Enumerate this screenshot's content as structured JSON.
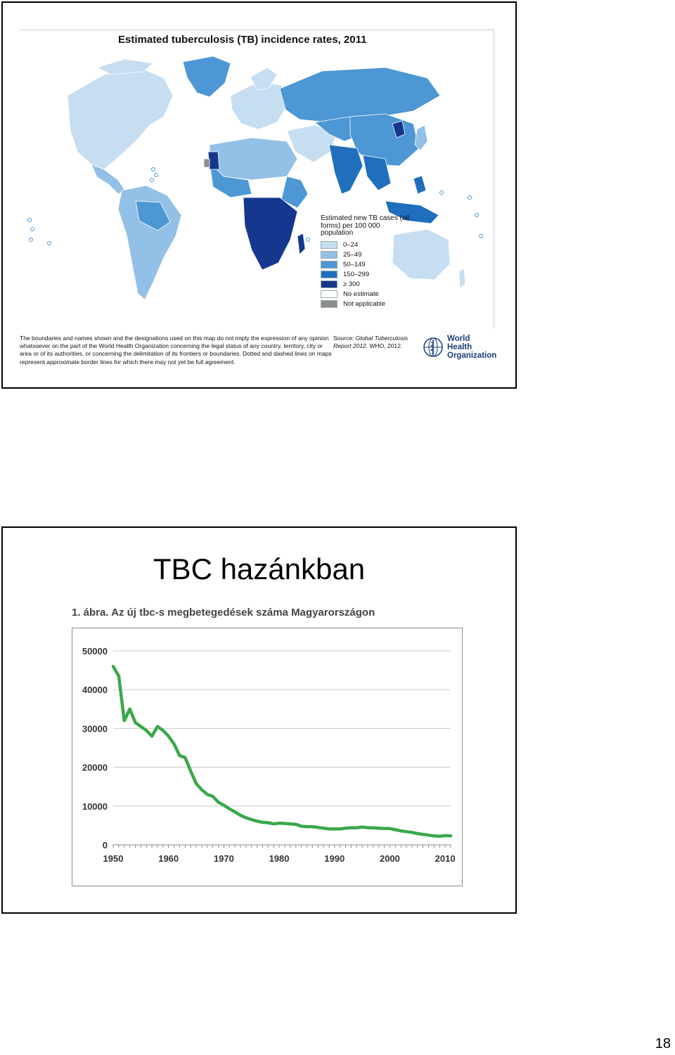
{
  "slide1": {
    "map": {
      "title": "Estimated tuberculosis (TB) incidence rates, 2011",
      "legend": {
        "title": "Estimated new TB cases (all forms) per 100 000 population",
        "items": [
          {
            "label": "0–24",
            "color": "#c6def2"
          },
          {
            "label": "25–49",
            "color": "#93c0e6"
          },
          {
            "label": "50–149",
            "color": "#4d97d4"
          },
          {
            "label": "150–299",
            "color": "#1f6fbd"
          },
          {
            "label": "≥ 300",
            "color": "#15378e"
          },
          {
            "label": "No estimate",
            "color": "#ffffff"
          },
          {
            "label": "Not applicable",
            "color": "#8c8c8c"
          }
        ]
      },
      "disclaimer": "The boundaries and names shown and the designations used on this map do not imply the expression of any opinion whatsoever on the part of the World Health Organization concerning the legal status of any country, territory, city or area or of its authorities, or concerning the delimitation of its frontiers or boundaries. Dotted and dashed lines on maps represent approximate border lines for which there may not yet be full agreement.",
      "source_prefix": "Source: ",
      "source_title": "Global Tuberculosis Report 2012",
      "source_suffix": ". WHO, 2012.",
      "org_name_line1": "World Health",
      "org_name_line2": "Organization"
    }
  },
  "slide2": {
    "title": "TBC hazánkban",
    "caption": "1. ábra. Az új tbc-s megbetegedések száma Magyarországon"
  },
  "chart_data": {
    "type": "line",
    "title": "1. ábra. Az új tbc-s megbetegedések száma Magyarországon",
    "xlabel": "",
    "ylabel": "",
    "xlim": [
      1950,
      2011
    ],
    "ylim": [
      0,
      50000
    ],
    "x_ticks": [
      1950,
      1960,
      1970,
      1980,
      1990,
      2000,
      2010
    ],
    "y_ticks": [
      0,
      10000,
      20000,
      30000,
      40000,
      50000
    ],
    "grid": true,
    "series_color": "#3aa84a",
    "series": [
      {
        "x": [
          1950,
          1951,
          1952,
          1953,
          1954,
          1955,
          1956,
          1957,
          1958,
          1959,
          1960,
          1961,
          1962,
          1963,
          1964,
          1965,
          1966,
          1967,
          1968,
          1969,
          1970,
          1971,
          1972,
          1973,
          1974,
          1975,
          1976,
          1977,
          1978,
          1979,
          1980,
          1981,
          1982,
          1983,
          1984,
          1985,
          1986,
          1987,
          1988,
          1989,
          1990,
          1991,
          1992,
          1993,
          1994,
          1995,
          1996,
          1997,
          1998,
          1999,
          2000,
          2001,
          2002,
          2003,
          2004,
          2005,
          2006,
          2007,
          2008,
          2009,
          2010,
          2011
        ],
        "values": [
          46000,
          43500,
          32000,
          35000,
          31500,
          30500,
          29500,
          28000,
          30500,
          29500,
          28000,
          26000,
          23000,
          22500,
          19000,
          15800,
          14200,
          13000,
          12500,
          11000,
          10200,
          9300,
          8500,
          7600,
          7000,
          6500,
          6100,
          5800,
          5700,
          5400,
          5600,
          5500,
          5400,
          5300,
          4800,
          4700,
          4700,
          4500,
          4300,
          4100,
          4100,
          4100,
          4300,
          4400,
          4400,
          4600,
          4400,
          4400,
          4300,
          4200,
          4200,
          3900,
          3600,
          3400,
          3200,
          2900,
          2700,
          2500,
          2300,
          2200,
          2400,
          2300
        ]
      }
    ]
  },
  "page_number": "18"
}
